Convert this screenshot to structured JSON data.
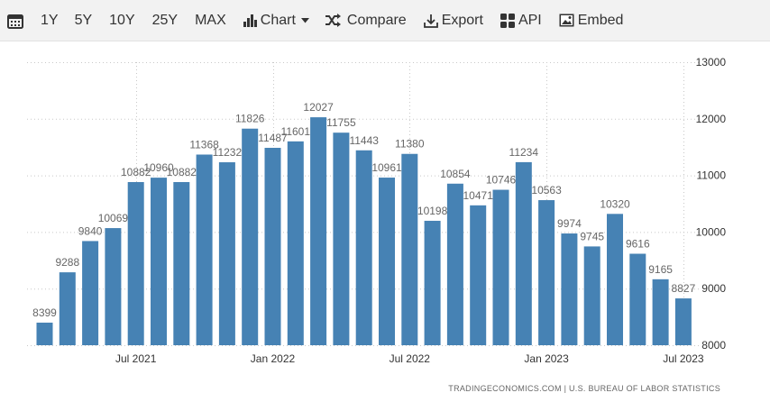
{
  "toolbar": {
    "items": [
      {
        "label": "",
        "icon": "calendar-icon"
      },
      {
        "label": "1Y"
      },
      {
        "label": "5Y"
      },
      {
        "label": "10Y"
      },
      {
        "label": "25Y"
      },
      {
        "label": "MAX"
      },
      {
        "label": "Chart",
        "icon": "bar-chart-icon"
      },
      {
        "label": "Compare",
        "icon": "shuffle-icon"
      },
      {
        "label": "Export",
        "icon": "download-icon"
      },
      {
        "label": "API",
        "icon": "grid-icon"
      },
      {
        "label": "Embed",
        "icon": "image-icon"
      }
    ]
  },
  "credit": "TRADINGECONOMICS.COM | U.S. BUREAU OF LABOR STATISTICS",
  "colors": {
    "bar": "#4682b4",
    "toolbar_bg": "#f2f2f2"
  },
  "chart_data": {
    "type": "bar",
    "title": "",
    "xlabel": "",
    "ylabel": "",
    "ylim": [
      8000,
      13000
    ],
    "yticks": [
      8000,
      9000,
      10000,
      11000,
      12000,
      13000
    ],
    "grid": true,
    "y_axis_position": "right",
    "xtick_labels": [
      {
        "label": "Jul 2021",
        "index": 4
      },
      {
        "label": "Jan 2022",
        "index": 10
      },
      {
        "label": "Jul 2022",
        "index": 16
      },
      {
        "label": "Jan 2023",
        "index": 22
      },
      {
        "label": "Jul 2023",
        "index": 28
      }
    ],
    "categories": [
      "Mar 2021",
      "Apr 2021",
      "May 2021",
      "Jun 2021",
      "Jul 2021",
      "Aug 2021",
      "Sep 2021",
      "Oct 2021",
      "Nov 2021",
      "Dec 2021",
      "Jan 2022",
      "Feb 2022",
      "Mar 2022",
      "Apr 2022",
      "May 2022",
      "Jun 2022",
      "Jul 2022",
      "Aug 2022",
      "Sep 2022",
      "Oct 2022",
      "Nov 2022",
      "Dec 2022",
      "Jan 2023",
      "Feb 2023",
      "Mar 2023",
      "Apr 2023",
      "May 2023",
      "Jun 2023",
      "Jul 2023"
    ],
    "values": [
      8399,
      9288,
      9840,
      10069,
      10882,
      10960,
      10882,
      11368,
      11232,
      11826,
      11487,
      11601,
      12027,
      11755,
      11443,
      10961,
      11380,
      10198,
      10854,
      10471,
      10746,
      11234,
      10563,
      9974,
      9745,
      10320,
      9616,
      9165,
      8827
    ]
  }
}
